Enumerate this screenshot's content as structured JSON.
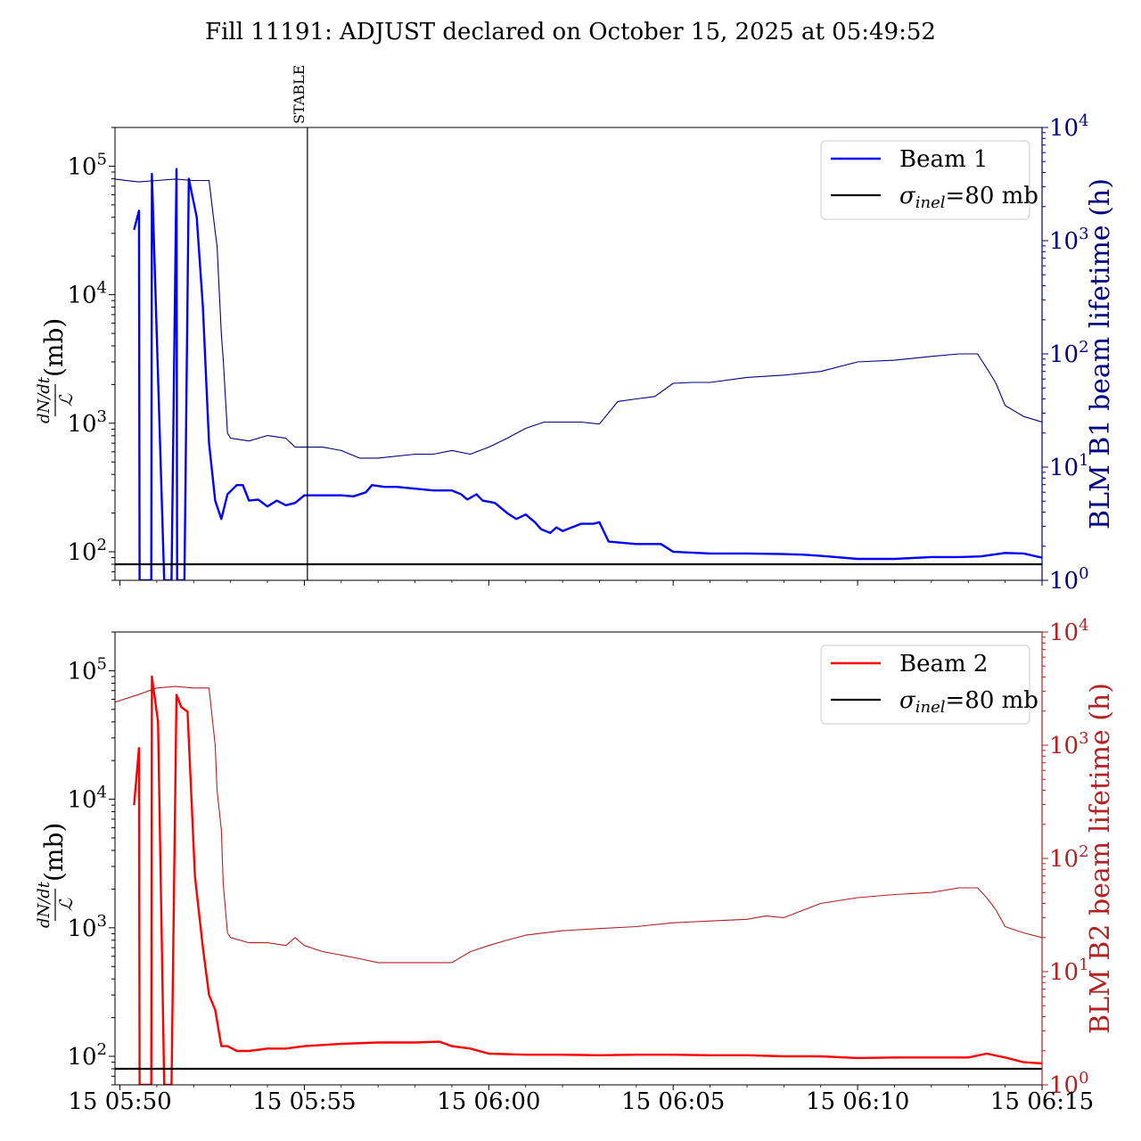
{
  "title": "Fill 11191: ADJUST declared on October 15, 2025 at 05:49:52",
  "colors": {
    "beam1": "#0000ff",
    "beam1_lifetime": "#000080",
    "beam1_axis": "#000080",
    "beam2": "#ff0000",
    "beam2_lifetime": "#b22222",
    "beam2_axis": "#b22222",
    "sigma_line": "#000000"
  },
  "x_axis": {
    "type": "time",
    "range": [
      "15 05:49:52",
      "15 06:15:00"
    ],
    "tick_labels": [
      "15 05:50",
      "15 05:55",
      "15 06:00",
      "15 06:05",
      "15 06:10",
      "15 06:15"
    ]
  },
  "chart_data": [
    {
      "type": "line",
      "panel": "top",
      "ylabel_num": "dN/dt",
      "ylabel_den": "ℒ",
      "ylabel_unit": "(mb)",
      "y_scale": "log",
      "ylim": [
        60,
        200000
      ],
      "y_ticks": [
        100,
        1000,
        10000,
        100000
      ],
      "y2label": "BLM B1 beam lifetime (h)",
      "y2_scale": "log",
      "y2lim": [
        1,
        10000
      ],
      "y2_ticks": [
        1,
        10,
        100,
        1000,
        10000
      ],
      "annotation": {
        "label": "STABLE",
        "x": "15 05:55:05"
      },
      "legend": {
        "position": "top-right",
        "entries": [
          "Beam 1",
          "σinel=80 mb"
        ]
      },
      "series": [
        {
          "name": "Beam 1",
          "axis": "left",
          "x": [
            "15 05:50:23",
            "15 05:50:31",
            "15 05:50:32",
            "15 05:50:33",
            "15 05:50:51",
            "15 05:50:52",
            "15 05:51:12",
            "15 05:51:13",
            "15 05:51:24",
            "15 05:51:32",
            "15 05:51:33",
            "15 05:51:45",
            "15 05:51:52",
            "15 05:52:05",
            "15 05:52:15",
            "15 05:52:25",
            "15 05:52:35",
            "15 05:52:45",
            "15 05:52:55",
            "15 05:53:10",
            "15 05:53:20",
            "15 05:53:30",
            "15 05:53:45",
            "15 05:54:00",
            "15 05:54:15",
            "15 05:54:30",
            "15 05:54:45",
            "15 05:55:00",
            "15 05:55:30",
            "15 05:56:00",
            "15 05:56:20",
            "15 05:56:40",
            "15 05:56:50",
            "15 05:57:10",
            "15 05:57:30",
            "15 05:58:00",
            "15 05:58:30",
            "15 05:59:00",
            "15 05:59:15",
            "15 05:59:25",
            "15 05:59:40",
            "15 05:59:50",
            "15 06:00:10",
            "15 06:00:30",
            "15 06:00:45",
            "15 06:01:00",
            "15 06:01:15",
            "15 06:01:25",
            "15 06:01:40",
            "15 06:01:50",
            "15 06:02:00",
            "15 06:02:30",
            "15 06:02:50",
            "15 06:03:00",
            "15 06:03:15",
            "15 06:04:00",
            "15 06:04:40",
            "15 06:05:00",
            "15 06:06:00",
            "15 06:07:00",
            "15 06:08:00",
            "15 06:08:30",
            "15 06:09:00",
            "15 06:10:00",
            "15 06:11:00",
            "15 06:12:00",
            "15 06:12:45",
            "15 06:13:20",
            "15 06:14:00",
            "15 06:14:30",
            "15 06:15:00"
          ],
          "values": [
            32000,
            45000,
            60,
            60,
            60,
            87000,
            60,
            60,
            60,
            95000,
            60,
            60,
            80000,
            40000,
            8000,
            700,
            250,
            180,
            280,
            330,
            330,
            250,
            255,
            225,
            250,
            230,
            240,
            275,
            275,
            275,
            270,
            290,
            330,
            320,
            320,
            310,
            300,
            300,
            280,
            255,
            280,
            250,
            240,
            200,
            180,
            195,
            170,
            150,
            140,
            155,
            145,
            165,
            165,
            170,
            120,
            115,
            115,
            100,
            97,
            97,
            96,
            95,
            93,
            88,
            88,
            91,
            91,
            92,
            98,
            97,
            90
          ]
        },
        {
          "name": "BLM B1 beam lifetime",
          "axis": "right",
          "x": [
            "15 05:49:52",
            "15 05:50:30",
            "15 05:51:00",
            "15 05:51:30",
            "15 05:52:00",
            "15 05:52:25",
            "15 05:52:35",
            "15 05:52:38",
            "15 05:52:45",
            "15 05:52:48",
            "15 05:52:55",
            "15 05:53:00",
            "15 05:53:30",
            "15 05:54:00",
            "15 05:54:30",
            "15 05:54:45",
            "15 05:55:00",
            "15 05:55:30",
            "15 05:56:00",
            "15 05:56:30",
            "15 05:57:00",
            "15 05:58:00",
            "15 05:58:30",
            "15 05:59:00",
            "15 05:59:30",
            "15 06:00:00",
            "15 06:00:30",
            "15 06:01:00",
            "15 06:01:30",
            "15 06:02:00",
            "15 06:02:30",
            "15 06:03:00",
            "15 06:03:30",
            "15 06:04:00",
            "15 06:04:30",
            "15 06:05:00",
            "15 06:05:30",
            "15 06:06:00",
            "15 06:07:00",
            "15 06:08:00",
            "15 06:09:00",
            "15 06:10:00",
            "15 06:11:00",
            "15 06:12:00",
            "15 06:12:45",
            "15 06:13:15",
            "15 06:13:30",
            "15 06:13:45",
            "15 06:14:00",
            "15 06:14:30",
            "15 06:15:00"
          ],
          "values": [
            3500,
            3300,
            3400,
            3500,
            3400,
            3400,
            1200,
            900,
            150,
            90,
            20,
            18,
            17,
            19,
            18,
            15,
            15,
            15,
            14,
            12,
            12,
            13,
            13,
            14,
            13,
            15,
            18,
            22,
            25,
            25,
            25,
            24,
            38,
            40,
            42,
            55,
            56,
            56,
            62,
            65,
            70,
            85,
            88,
            95,
            100,
            100,
            75,
            55,
            35,
            28,
            25
          ]
        },
        {
          "name": "σinel=80 mb",
          "axis": "left",
          "x": [
            "15 05:49:52",
            "15 06:15:00"
          ],
          "values": [
            80,
            80
          ]
        }
      ]
    },
    {
      "type": "line",
      "panel": "bottom",
      "ylabel_num": "dN/dt",
      "ylabel_den": "ℒ",
      "ylabel_unit": "(mb)",
      "y_scale": "log",
      "ylim": [
        60,
        200000
      ],
      "y_ticks": [
        100,
        1000,
        10000,
        100000
      ],
      "y2label": "BLM B2 beam lifetime (h)",
      "y2_scale": "log",
      "y2lim": [
        1,
        10000
      ],
      "y2_ticks": [
        1,
        10,
        100,
        1000,
        10000
      ],
      "legend": {
        "position": "top-right",
        "entries": [
          "Beam 2",
          "σinel=80 mb"
        ]
      },
      "series": [
        {
          "name": "Beam 2",
          "axis": "left",
          "x": [
            "15 05:50:23",
            "15 05:50:31",
            "15 05:50:32",
            "15 05:50:33",
            "15 05:50:51",
            "15 05:50:52",
            "15 05:51:02",
            "15 05:51:12",
            "15 05:51:13",
            "15 05:51:24",
            "15 05:51:32",
            "15 05:51:40",
            "15 05:51:50",
            "15 05:52:02",
            "15 05:52:15",
            "15 05:52:25",
            "15 05:52:35",
            "15 05:52:45",
            "15 05:52:55",
            "15 05:53:10",
            "15 05:53:30",
            "15 05:54:00",
            "15 05:54:30",
            "15 05:55:00",
            "15 05:56:00",
            "15 05:57:00",
            "15 05:58:00",
            "15 05:58:40",
            "15 05:59:00",
            "15 05:59:30",
            "15 06:00:00",
            "15 06:01:00",
            "15 06:02:00",
            "15 06:03:00",
            "15 06:04:00",
            "15 06:05:00",
            "15 06:06:00",
            "15 06:07:00",
            "15 06:08:00",
            "15 06:09:00",
            "15 06:10:00",
            "15 06:11:00",
            "15 06:12:00",
            "15 06:13:00",
            "15 06:13:30",
            "15 06:14:00",
            "15 06:14:30",
            "15 06:15:00"
          ],
          "values": [
            9000,
            25000,
            60,
            60,
            60,
            90000,
            40000,
            60,
            60,
            60,
            65000,
            52000,
            48000,
            2500,
            700,
            300,
            230,
            120,
            120,
            110,
            110,
            115,
            115,
            120,
            125,
            128,
            128,
            130,
            120,
            115,
            105,
            103,
            103,
            102,
            103,
            103,
            102,
            102,
            100,
            100,
            97,
            98,
            98,
            98,
            105,
            98,
            90,
            88
          ]
        },
        {
          "name": "BLM B2 beam lifetime",
          "axis": "right",
          "x": [
            "15 05:49:52",
            "15 05:50:30",
            "15 05:51:00",
            "15 05:51:30",
            "15 05:52:00",
            "15 05:52:25",
            "15 05:52:35",
            "15 05:52:38",
            "15 05:52:45",
            "15 05:52:48",
            "15 05:52:55",
            "15 05:53:00",
            "15 05:53:30",
            "15 05:54:00",
            "15 05:54:30",
            "15 05:54:45",
            "15 05:55:00",
            "15 05:55:30",
            "15 05:56:00",
            "15 05:56:30",
            "15 05:57:00",
            "15 05:58:00",
            "15 05:58:30",
            "15 05:59:00",
            "15 05:59:30",
            "15 06:00:00",
            "15 06:00:30",
            "15 06:01:00",
            "15 06:02:00",
            "15 06:03:00",
            "15 06:04:00",
            "15 06:05:00",
            "15 06:06:00",
            "15 06:07:00",
            "15 06:07:30",
            "15 06:08:00",
            "15 06:09:00",
            "15 06:10:00",
            "15 06:11:00",
            "15 06:12:00",
            "15 06:12:45",
            "15 06:13:15",
            "15 06:13:30",
            "15 06:13:45",
            "15 06:14:00",
            "15 06:14:30",
            "15 06:15:00"
          ],
          "values": [
            2400,
            2800,
            3200,
            3300,
            3200,
            3200,
            1000,
            400,
            180,
            60,
            22,
            20,
            18,
            18,
            17,
            20,
            17,
            15,
            14,
            13,
            12,
            12,
            12,
            12,
            15,
            17,
            19,
            21,
            23,
            24,
            25,
            27,
            28,
            29,
            31,
            30,
            40,
            45,
            48,
            50,
            55,
            55,
            45,
            35,
            25,
            22,
            20
          ]
        },
        {
          "name": "σinel=80 mb",
          "axis": "left",
          "x": [
            "15 05:49:52",
            "15 06:15:00"
          ],
          "values": [
            80,
            80
          ]
        }
      ]
    }
  ]
}
